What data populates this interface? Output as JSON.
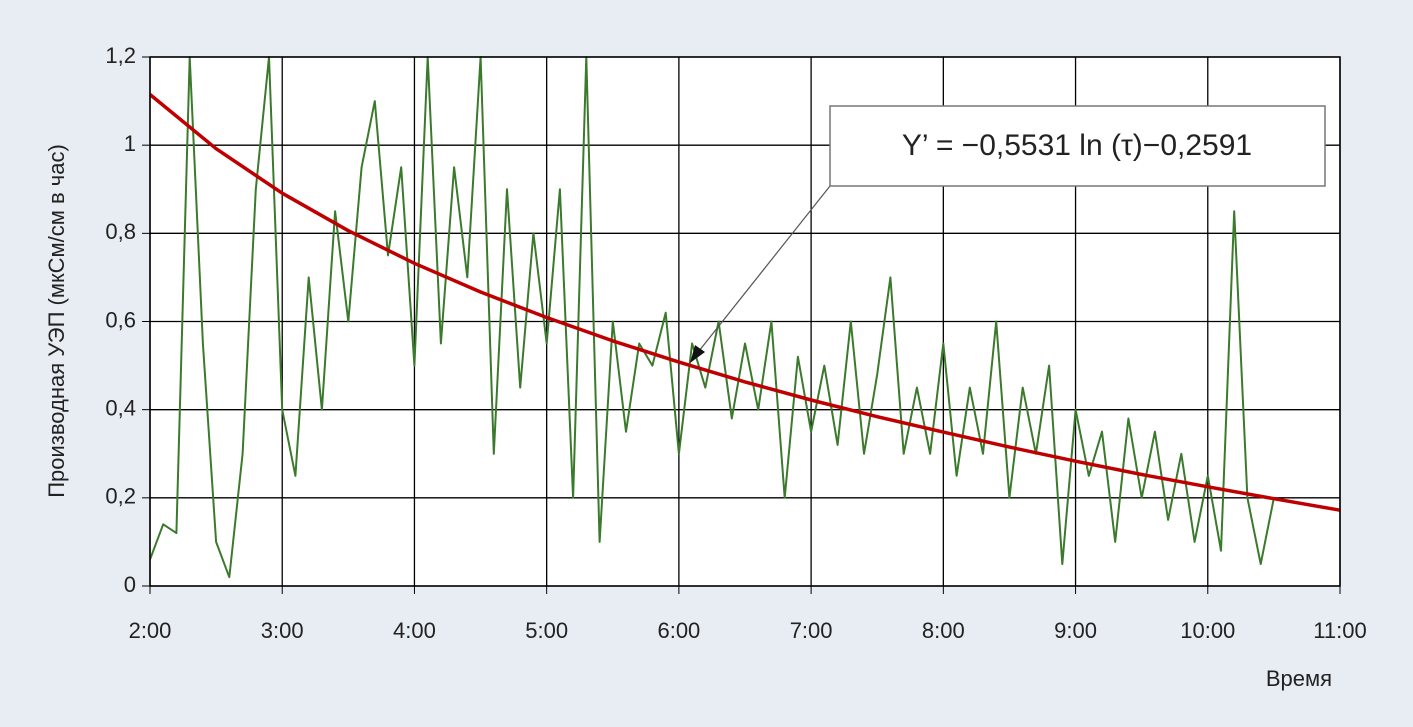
{
  "chart_data": {
    "type": "line",
    "y_label": "Производная УЭП (мкСм/см в час)",
    "x_label": "Время",
    "annotation": "Y’ = −0,5531 ln (τ)−0,2591",
    "xlim": [
      2,
      11
    ],
    "xticks": [
      {
        "value": 2,
        "label": "2:00"
      },
      {
        "value": 3,
        "label": "3:00"
      },
      {
        "value": 4,
        "label": "4:00"
      },
      {
        "value": 5,
        "label": "5:00"
      },
      {
        "value": 6,
        "label": "6:00"
      },
      {
        "value": 7,
        "label": "7:00"
      },
      {
        "value": 8,
        "label": "8:00"
      },
      {
        "value": 9,
        "label": "9:00"
      },
      {
        "value": 10,
        "label": "10:00"
      },
      {
        "value": 11,
        "label": "11:00"
      }
    ],
    "ylim": [
      0,
      1.2
    ],
    "yticks": [
      0,
      {
        "value": 0.2,
        "label": "0,2"
      },
      {
        "value": 0.4,
        "label": "0,4"
      },
      {
        "value": 0.6,
        "label": "0,6"
      },
      {
        "value": 0.8,
        "label": "0,8"
      },
      1,
      {
        "value": 1.2,
        "label": "1,2"
      }
    ],
    "grid": true,
    "series": [
      {
        "color": "#3b7a2c",
        "x": [
          2.0,
          2.1,
          2.2,
          2.3,
          2.4,
          2.5,
          2.6,
          2.7,
          2.8,
          2.9,
          3.0,
          3.1,
          3.2,
          3.3,
          3.4,
          3.5,
          3.6,
          3.7,
          3.8,
          3.9,
          4.0,
          4.1,
          4.2,
          4.3,
          4.4,
          4.5,
          4.6,
          4.7,
          4.8,
          4.9,
          5.0,
          5.1,
          5.2,
          5.3,
          5.4,
          5.5,
          5.6,
          5.7,
          5.8,
          5.9,
          6.0,
          6.1,
          6.2,
          6.3,
          6.4,
          6.5,
          6.6,
          6.7,
          6.8,
          6.9,
          7.0,
          7.1,
          7.2,
          7.3,
          7.4,
          7.5,
          7.6,
          7.7,
          7.8,
          7.9,
          8.0,
          8.1,
          8.2,
          8.3,
          8.4,
          8.5,
          8.6,
          8.7,
          8.8,
          8.9,
          9.0,
          9.1,
          9.2,
          9.3,
          9.4,
          9.5,
          9.6,
          9.7,
          9.8,
          9.9,
          10.0,
          10.1,
          10.2,
          10.3,
          10.4,
          10.5
        ],
        "values": [
          0.06,
          0.14,
          0.12,
          1.2,
          0.55,
          0.1,
          0.02,
          0.3,
          0.9,
          1.2,
          0.4,
          0.25,
          0.7,
          0.4,
          0.85,
          0.6,
          0.95,
          1.1,
          0.75,
          0.95,
          0.5,
          1.2,
          0.55,
          0.95,
          0.7,
          1.2,
          0.3,
          0.9,
          0.45,
          0.8,
          0.55,
          0.9,
          0.2,
          1.2,
          0.1,
          0.6,
          0.35,
          0.55,
          0.5,
          0.62,
          0.3,
          0.55,
          0.45,
          0.6,
          0.38,
          0.55,
          0.4,
          0.6,
          0.2,
          0.52,
          0.35,
          0.5,
          0.32,
          0.6,
          0.3,
          0.48,
          0.7,
          0.3,
          0.45,
          0.3,
          0.55,
          0.25,
          0.45,
          0.3,
          0.6,
          0.2,
          0.45,
          0.3,
          0.5,
          0.05,
          0.4,
          0.25,
          0.35,
          0.1,
          0.38,
          0.2,
          0.35,
          0.15,
          0.3,
          0.1,
          0.25,
          0.08,
          0.85,
          0.2,
          0.05,
          0.2
        ]
      },
      {
        "color": "#c00000",
        "x": [
          2,
          2.5,
          3,
          3.5,
          4,
          4.5,
          5,
          5.5,
          6,
          6.5,
          7,
          7.5,
          8,
          8.5,
          9,
          9.5,
          10,
          10.5,
          11
        ],
        "values": [
          1.115,
          0.992,
          0.891,
          0.806,
          0.732,
          0.667,
          0.609,
          0.556,
          0.508,
          0.463,
          0.422,
          0.384,
          0.349,
          0.315,
          0.283,
          0.253,
          0.225,
          0.198,
          0.172
        ]
      }
    ]
  }
}
